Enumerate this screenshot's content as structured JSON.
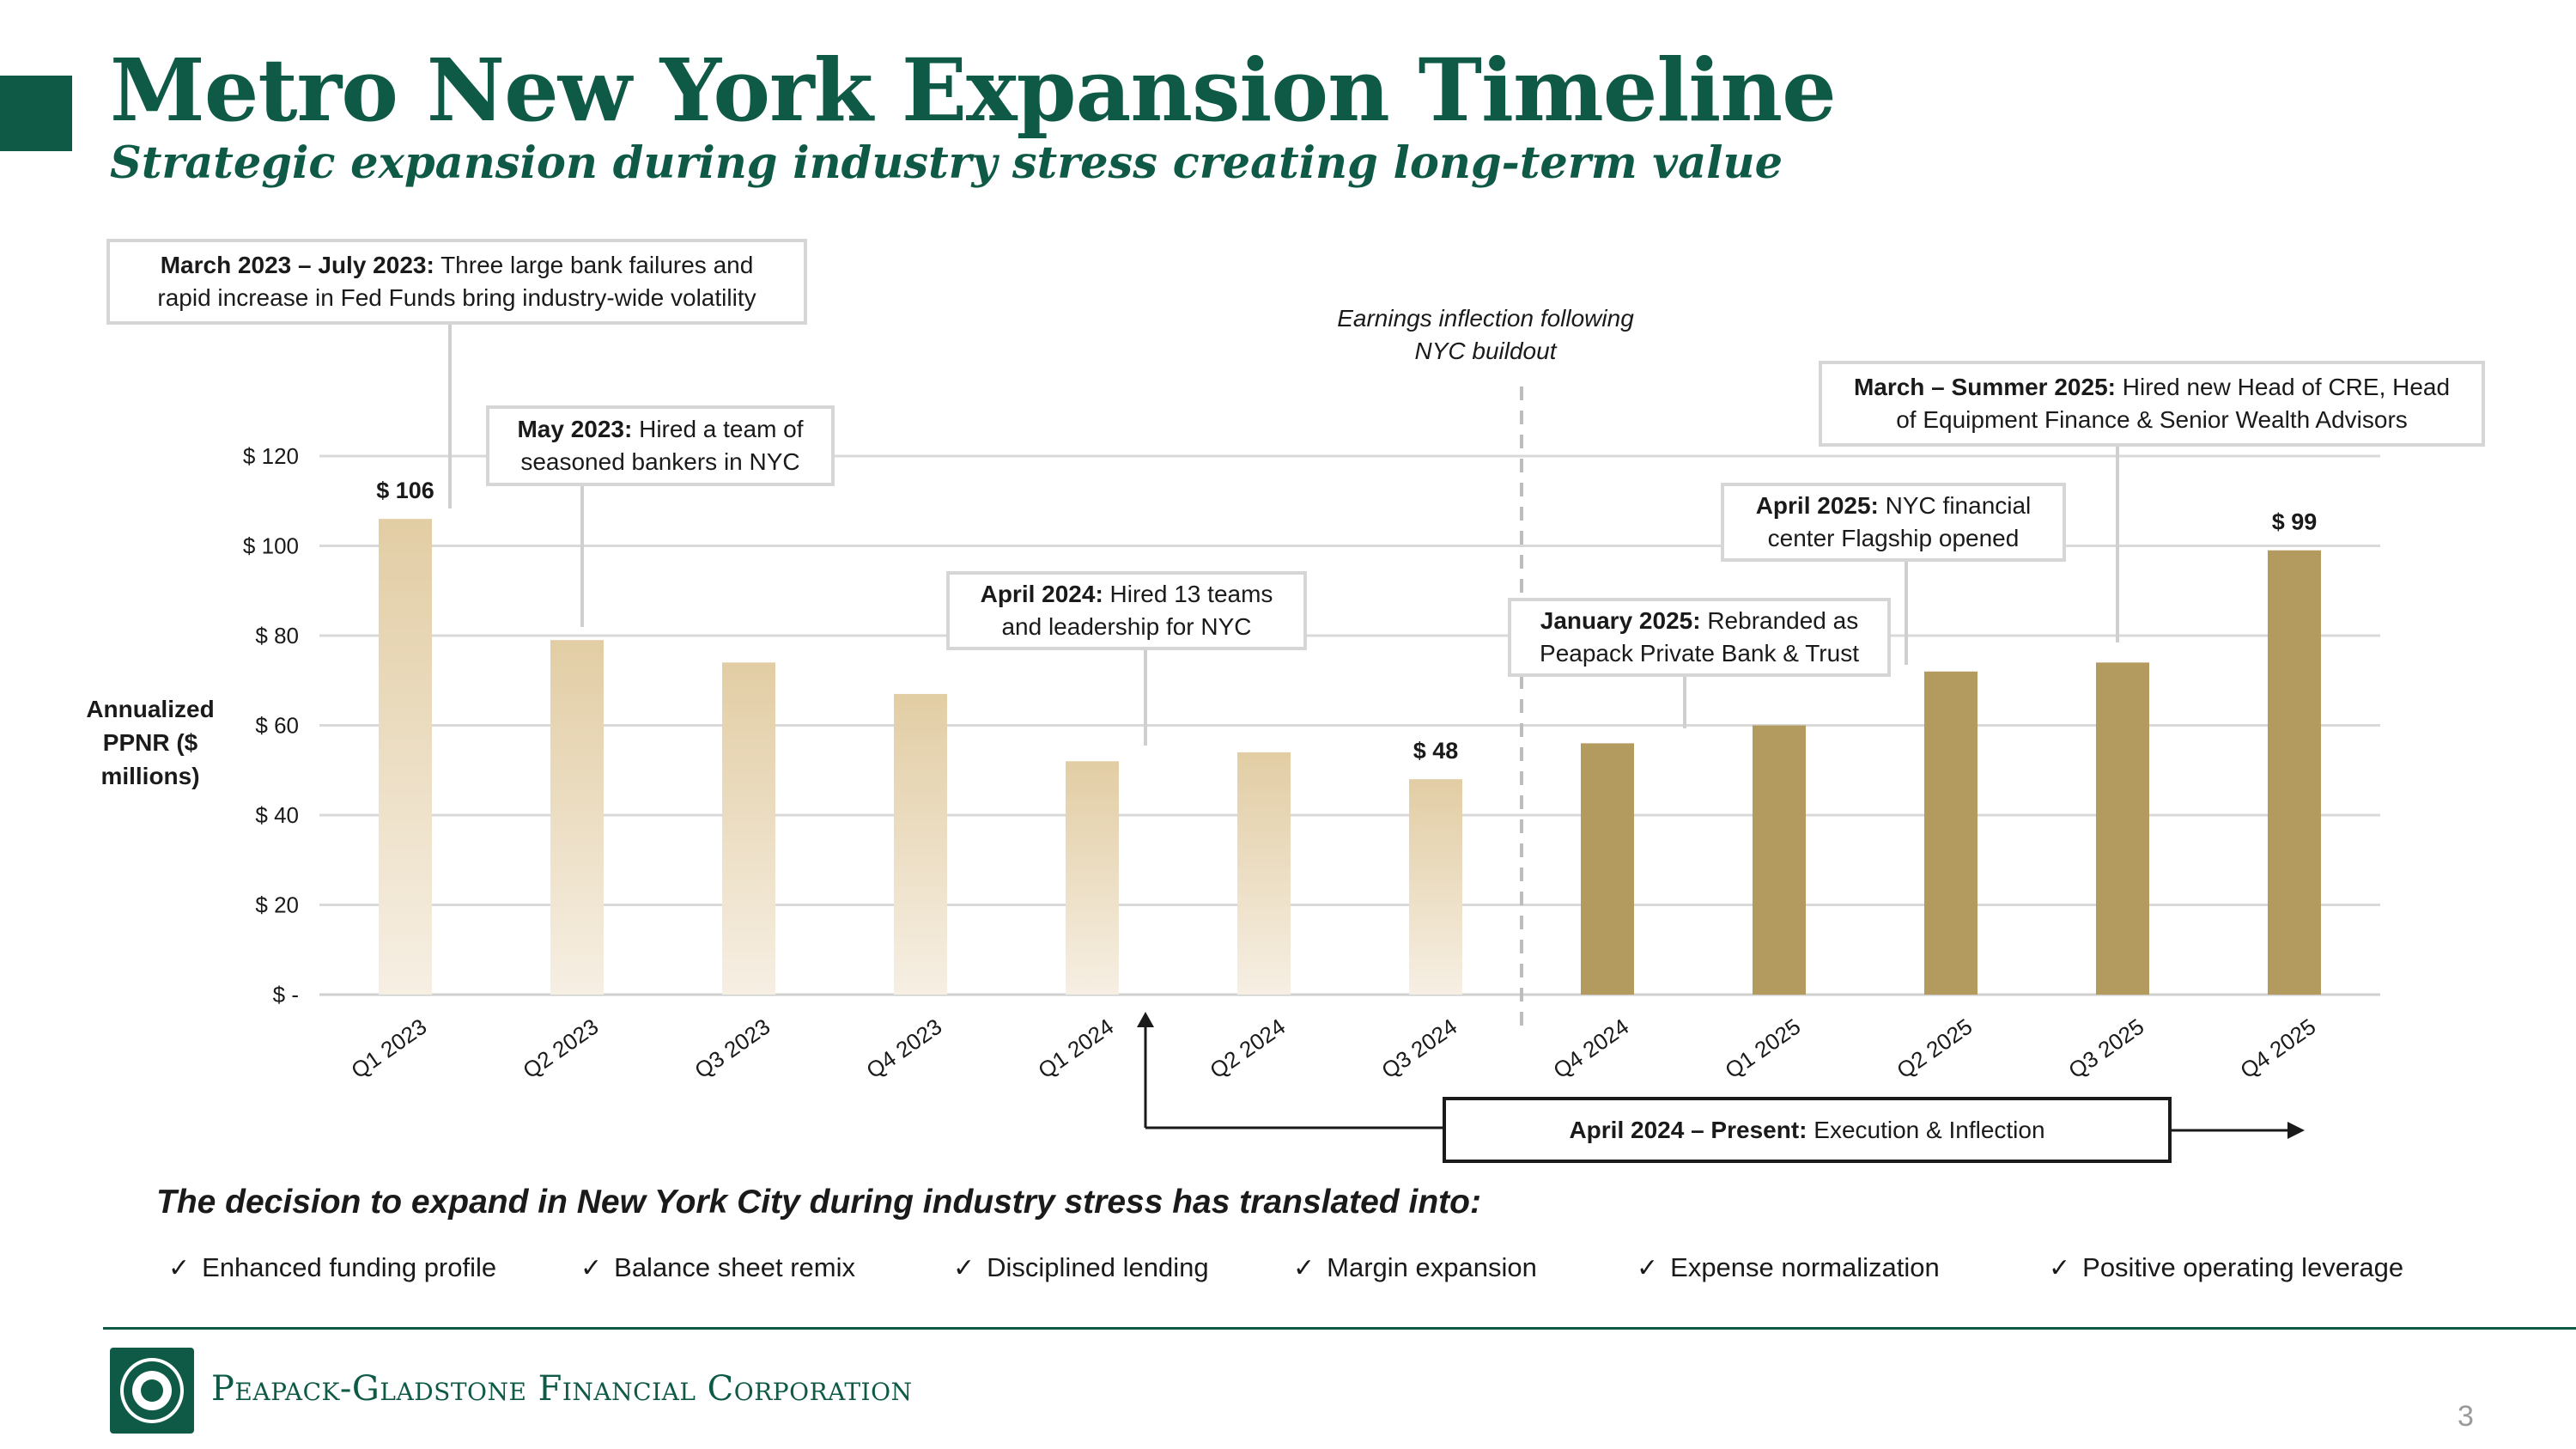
{
  "header": {
    "title": "Metro New York Expansion Timeline",
    "subtitle": "Strategic expansion during industry stress creating long-term value"
  },
  "chart_data": {
    "type": "bar",
    "ylabel": "Annualized PPNR ($ millions)",
    "ylim": [
      0,
      120
    ],
    "yticks": [
      {
        "value": 0,
        "label": "$ -"
      },
      {
        "value": 20,
        "label": "$ 20"
      },
      {
        "value": 40,
        "label": "$ 40"
      },
      {
        "value": 60,
        "label": "$ 60"
      },
      {
        "value": 80,
        "label": "$ 80"
      },
      {
        "value": 100,
        "label": "$ 100"
      },
      {
        "value": 120,
        "label": "$ 120"
      }
    ],
    "grid": true,
    "categories": [
      "Q1 2023",
      "Q2 2023",
      "Q3 2023",
      "Q4 2023",
      "Q1 2024",
      "Q2 2024",
      "Q3 2024",
      "Q4 2024",
      "Q1 2025",
      "Q2 2025",
      "Q3 2025",
      "Q4 2025"
    ],
    "values": [
      106,
      79,
      74,
      67,
      52,
      54,
      48,
      56,
      60,
      72,
      74,
      99
    ],
    "data_labels": [
      {
        "index": 0,
        "text": "$ 106"
      },
      {
        "index": 6,
        "text": "$ 48"
      },
      {
        "index": 11,
        "text": "$ 99"
      }
    ],
    "inflection_after_index": 6,
    "inflection_note": "Earnings inflection following NYC buildout"
  },
  "callouts": [
    {
      "id": "mar2023",
      "bold": "March 2023 – July 2023:",
      "line1_rest": " Three large bank failures and",
      "line2": "rapid increase in Fed Funds bring industry-wide volatility"
    },
    {
      "id": "may2023",
      "bold": "May 2023:",
      "line1_rest": " Hired a team of",
      "line2": "seasoned bankers in NYC"
    },
    {
      "id": "apr2024",
      "bold": "April 2024:",
      "line1_rest": " Hired 13 teams",
      "line2": "and leadership for NYC"
    },
    {
      "id": "jan2025",
      "bold": "January 2025:",
      "line1_rest": " Rebranded as",
      "line2": "Peapack Private Bank & Trust"
    },
    {
      "id": "apr2025",
      "bold": "April 2025:",
      "line1_rest": " NYC financial",
      "line2": "center Flagship opened"
    },
    {
      "id": "mar2025",
      "bold": "March – Summer 2025:",
      "line1_rest": " Hired new Head of CRE, Head",
      "line2": "of Equipment Finance & Senior Wealth Advisors"
    }
  ],
  "era": {
    "bold": "April 2024 – Present:",
    "rest": " Execution & Inflection"
  },
  "decision_text": "The decision to expand in New York City during industry stress has translated into:",
  "benefits": [
    "Enhanced funding profile",
    "Balance sheet remix",
    "Disciplined lending",
    "Margin expansion",
    "Expense normalization",
    "Positive operating leverage"
  ],
  "check_glyph": "✓",
  "footer": {
    "company": "Peapack-Gladstone Financial Corporation",
    "page_number": "3"
  },
  "colors": {
    "brand_green": "#0f5a47",
    "bar_gold": "#b39a5e",
    "bar_light_top": "#e2cda4",
    "bar_light_bottom": "#f6efe3",
    "grid": "#d9d9d9"
  }
}
